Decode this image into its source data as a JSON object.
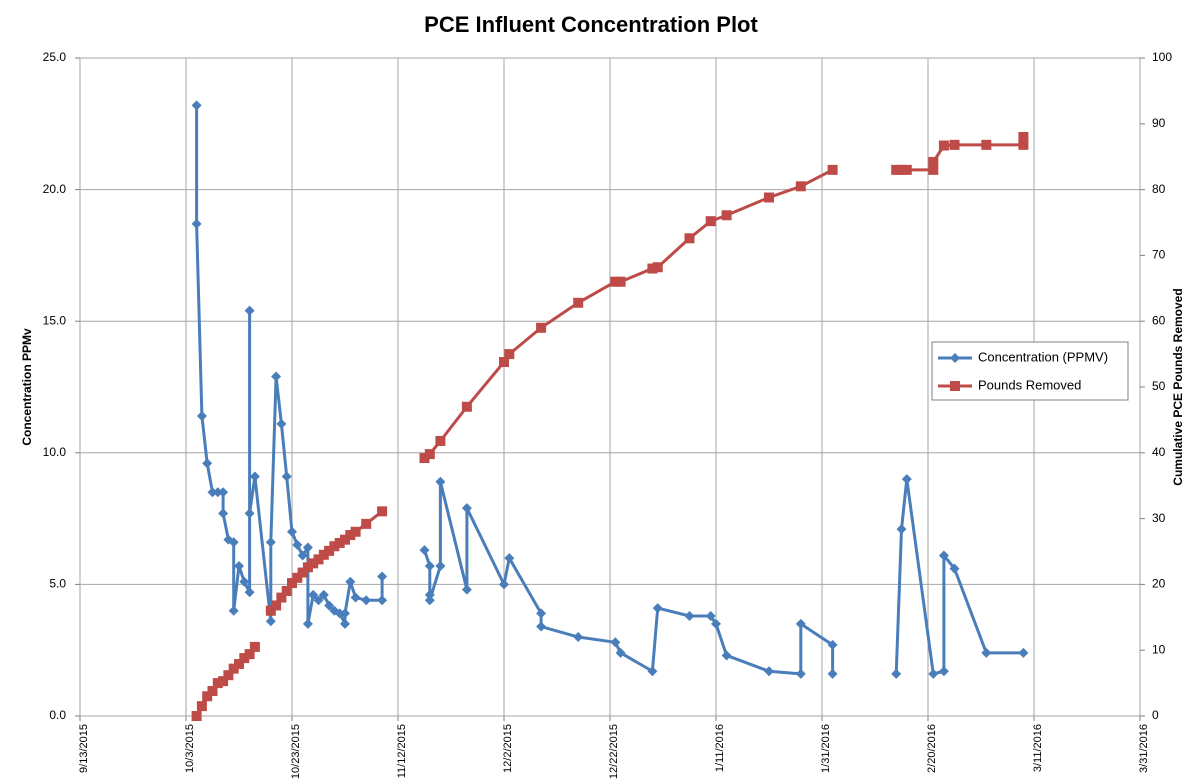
{
  "chart_data": {
    "type": "line",
    "title": "PCE Influent Concentration Plot",
    "y_label": "Concentration PPMv",
    "y2_label": "Cumulative PCE Pounds Removed",
    "xlim": [
      "9/13/2015",
      "3/31/2016"
    ],
    "xticks": [
      "9/13/2015",
      "10/3/2015",
      "10/23/2015",
      "11/12/2015",
      "12/2/2015",
      "12/22/2015",
      "1/11/2016",
      "1/31/2016",
      "2/20/2016",
      "3/11/2016",
      "3/31/2016"
    ],
    "ylim": [
      0,
      25
    ],
    "yticks": [
      {
        "value": 0,
        "label": "0.0"
      },
      {
        "value": 5,
        "label": "5.0"
      },
      {
        "value": 10,
        "label": "10.0"
      },
      {
        "value": 15,
        "label": "15.0"
      },
      {
        "value": 20,
        "label": "20.0"
      },
      {
        "value": 25,
        "label": "25.0"
      }
    ],
    "y2lim": [
      0,
      100
    ],
    "y2ticks": [
      0,
      10,
      20,
      30,
      40,
      50,
      60,
      70,
      80,
      90,
      100
    ],
    "grid": true,
    "legend": "right",
    "series": [
      {
        "name": "Concentration (PPMV)",
        "color": "#4a7ebb",
        "marker": "diamond",
        "x": [
          "10/5/2015",
          "10/5/2015",
          "10/6/2015",
          "10/7/2015",
          "10/8/2015",
          "10/9/2015",
          "10/10/2015",
          "10/10/2015",
          "10/11/2015",
          "10/12/2015",
          "10/12/2015",
          "10/13/2015",
          "10/14/2015",
          "10/15/2015",
          "10/15/2015",
          "10/15/2015",
          "10/16/2015",
          "10/19/2015",
          "10/19/2015",
          "10/20/2015",
          "10/21/2015",
          "10/22/2015",
          "10/23/2015",
          "10/24/2015",
          "10/25/2015",
          "10/26/2015",
          "10/26/2015",
          "10/27/2015",
          "10/28/2015",
          "10/29/2015",
          "10/30/2015",
          "10/31/2015",
          "11/1/2015",
          "11/2/2015",
          "11/2/2015",
          "11/3/2015",
          "11/4/2015",
          "11/6/2015",
          "11/9/2015",
          "11/9/2015",
          null,
          "11/17/2015",
          "11/18/2015",
          "11/18/2015",
          "11/18/2015",
          "11/20/2015",
          "11/20/2015",
          "11/25/2015",
          "11/25/2015",
          "12/2/2015",
          "12/3/2015",
          "12/9/2015",
          "12/9/2015",
          "12/16/2015",
          "12/23/2015",
          "12/24/2015",
          "12/30/2015",
          "12/31/2015",
          "1/6/2016",
          "1/10/2016",
          "1/11/2016",
          "1/13/2016",
          "1/21/2016",
          "1/27/2016",
          "1/27/2016",
          "2/2/2016",
          "2/2/2016",
          null,
          "2/14/2016",
          "2/15/2016",
          "2/16/2016",
          "2/21/2016",
          "2/23/2016",
          "2/23/2016",
          "2/25/2016",
          "3/2/2016",
          "3/9/2016"
        ],
        "values": [
          23.2,
          18.7,
          11.4,
          9.6,
          8.5,
          8.5,
          8.5,
          7.7,
          6.7,
          6.6,
          4.0,
          5.7,
          5.1,
          4.7,
          15.4,
          7.7,
          9.1,
          3.6,
          6.6,
          12.9,
          11.1,
          9.1,
          7.0,
          6.5,
          6.1,
          6.4,
          3.5,
          4.6,
          4.4,
          4.6,
          4.2,
          4.0,
          3.9,
          3.5,
          3.9,
          5.1,
          4.5,
          4.4,
          4.4,
          5.3,
          null,
          6.3,
          5.7,
          4.6,
          4.4,
          5.7,
          8.9,
          4.8,
          7.9,
          5.0,
          6.0,
          3.9,
          3.4,
          3.0,
          2.8,
          2.4,
          1.7,
          4.1,
          3.8,
          3.8,
          3.5,
          2.3,
          1.7,
          1.6,
          3.5,
          2.7,
          1.6,
          null,
          1.6,
          7.1,
          9.0,
          1.6,
          1.7,
          6.1,
          5.6,
          2.4,
          2.4
        ]
      },
      {
        "name": "Pounds Removed",
        "color": "#be4b48",
        "marker": "square",
        "axis": "y2",
        "x": [
          "10/5/2015",
          "10/6/2015",
          "10/7/2015",
          "10/8/2015",
          "10/9/2015",
          "10/10/2015",
          "10/11/2015",
          "10/12/2015",
          "10/13/2015",
          "10/14/2015",
          "10/15/2015",
          "10/16/2015",
          null,
          "10/19/2015",
          "10/20/2015",
          "10/21/2015",
          "10/22/2015",
          "10/23/2015",
          "10/24/2015",
          "10/25/2015",
          "10/26/2015",
          "10/27/2015",
          "10/28/2015",
          "10/29/2015",
          "10/30/2015",
          "10/31/2015",
          "11/1/2015",
          "11/2/2015",
          "11/3/2015",
          "11/4/2015",
          "11/6/2015",
          "11/9/2015",
          null,
          "11/17/2015",
          "11/18/2015",
          "11/20/2015",
          "11/25/2015",
          "12/2/2015",
          "12/3/2015",
          "12/9/2015",
          "12/16/2015",
          "12/23/2015",
          "12/24/2015",
          "12/30/2015",
          "12/31/2015",
          "1/6/2016",
          "1/10/2016",
          "1/13/2016",
          "1/21/2016",
          "1/27/2016",
          "2/2/2016",
          null,
          "2/14/2016",
          "2/15/2016",
          "2/16/2016",
          "2/21/2016",
          "2/21/2016",
          "2/23/2016",
          "2/25/2016",
          "3/2/2016",
          "3/9/2016",
          "3/9/2016"
        ],
        "values": [
          0,
          1.5,
          3,
          3.8,
          5,
          5.3,
          6.2,
          7.2,
          7.9,
          8.8,
          9.4,
          10.5,
          null,
          16,
          16.8,
          18,
          19,
          20.2,
          21,
          21.8,
          22.6,
          23.2,
          23.8,
          24.5,
          25.1,
          25.8,
          26.3,
          26.8,
          27.5,
          28,
          29.2,
          31.1,
          null,
          39.2,
          39.8,
          41.8,
          47,
          53.8,
          55,
          59,
          62.8,
          66,
          66,
          68,
          68.2,
          72.6,
          75.2,
          76.1,
          78.8,
          80.5,
          83,
          null,
          83,
          83,
          83,
          83,
          84.2,
          86.7,
          86.8,
          86.8,
          86.8,
          88
        ]
      }
    ]
  }
}
